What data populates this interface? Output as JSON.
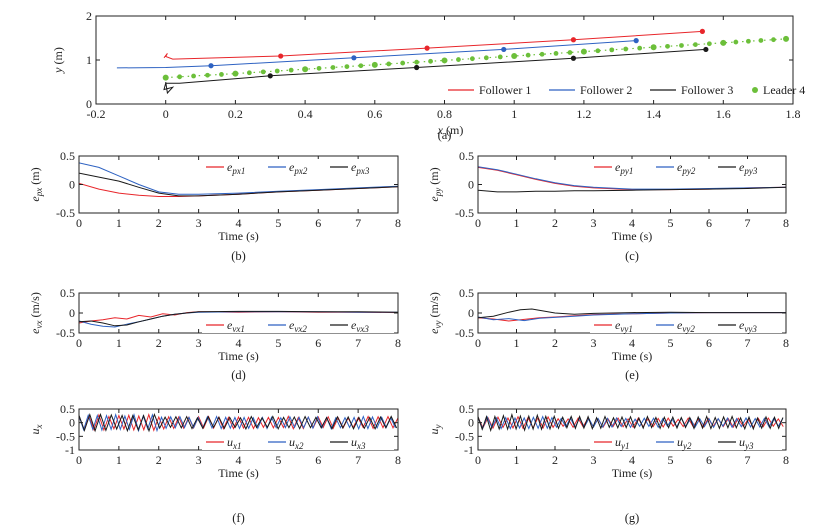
{
  "figure": {
    "subfigure_labels": [
      "(a)",
      "(b)",
      "(c)",
      "(d)",
      "(e)",
      "(f)",
      "(g)"
    ]
  },
  "colors": {
    "f1": "#e8262b",
    "f2": "#2e62c2",
    "f3": "#1a1a1a",
    "leader": "#6cbf3a"
  },
  "chart_data": [
    {
      "id": "a",
      "type": "line",
      "xlabel": "x (m)",
      "ylabel": "y (m)",
      "xlim": [
        -0.2,
        1.8
      ],
      "ylim": [
        0,
        2
      ],
      "xticks": [
        "-0.2",
        "0",
        "0.2",
        "0.4",
        "0.6",
        "0.8",
        "1",
        "1.2",
        "1.4",
        "1.6",
        "1.8"
      ],
      "yticks": [
        "0",
        "1",
        "2"
      ],
      "legend": "inside bottom-right, one row",
      "series": [
        {
          "name": "Follower 1",
          "color": "f1",
          "marker": "dot",
          "x": [
            -0.005,
            0.005,
            0,
            0.02,
            0.33,
            0.75,
            1.17,
            1.54
          ],
          "y": [
            1.05,
            1.15,
            1.08,
            1.02,
            1.09,
            1.27,
            1.46,
            1.65
          ]
        },
        {
          "name": "Follower 2",
          "color": "f2",
          "marker": "dot",
          "x": [
            -0.14,
            0.0,
            0.13,
            0.54,
            0.97,
            1.35
          ],
          "y": [
            0.82,
            0.83,
            0.87,
            1.05,
            1.24,
            1.44
          ]
        },
        {
          "name": "Follower 3",
          "color": "f3",
          "marker": "dot",
          "x": [
            0,
            0.005,
            0.02,
            -0.005,
            0,
            0.04,
            0.3,
            0.72,
            1.17,
            1.55
          ],
          "y": [
            0.5,
            0.25,
            0.38,
            0.33,
            0.47,
            0.47,
            0.64,
            0.83,
            1.04,
            1.24
          ]
        },
        {
          "name": "Leader 4",
          "color": "leader",
          "marker": "big-dot",
          "x": [
            0,
            0.2,
            0.4,
            0.6,
            0.8,
            1.0,
            1.2,
            1.4,
            1.6,
            1.78
          ],
          "y": [
            0.6,
            0.69,
            0.79,
            0.89,
            0.99,
            1.09,
            1.19,
            1.29,
            1.39,
            1.48
          ]
        }
      ]
    },
    {
      "id": "b",
      "type": "line",
      "xlabel": "Time (s)",
      "ylabel": "e_px (m)",
      "xlim": [
        0,
        8
      ],
      "ylim": [
        -0.5,
        0.5
      ],
      "xticks": [
        "0",
        "1",
        "2",
        "3",
        "4",
        "5",
        "6",
        "7",
        "8"
      ],
      "yticks": [
        "-0.5",
        "0",
        "0.5"
      ],
      "legend": "top-right",
      "series": [
        {
          "name": "e_px1",
          "color": "f1",
          "x": [
            0,
            0.5,
            1,
            1.5,
            2,
            2.5,
            3,
            4,
            5,
            6,
            7,
            8
          ],
          "y": [
            0.02,
            -0.08,
            -0.15,
            -0.19,
            -0.21,
            -0.21,
            -0.2,
            -0.17,
            -0.13,
            -0.1,
            -0.07,
            -0.04
          ]
        },
        {
          "name": "e_px2",
          "color": "f2",
          "x": [
            0,
            0.5,
            1,
            1.5,
            2,
            2.5,
            3,
            4,
            5,
            6,
            7,
            8
          ],
          "y": [
            0.38,
            0.3,
            0.15,
            0.0,
            -0.13,
            -0.17,
            -0.17,
            -0.15,
            -0.12,
            -0.09,
            -0.06,
            -0.03
          ]
        },
        {
          "name": "e_px3",
          "color": "f3",
          "x": [
            0,
            0.5,
            1,
            1.5,
            2,
            2.5,
            3,
            4,
            5,
            6,
            7,
            8
          ],
          "y": [
            0.2,
            0.13,
            0.06,
            -0.05,
            -0.15,
            -0.2,
            -0.2,
            -0.17,
            -0.13,
            -0.1,
            -0.07,
            -0.04
          ]
        }
      ]
    },
    {
      "id": "c",
      "type": "line",
      "xlabel": "Time (s)",
      "ylabel": "e_py (m)",
      "xlim": [
        0,
        8
      ],
      "ylim": [
        -0.5,
        0.5
      ],
      "xticks": [
        "0",
        "1",
        "2",
        "3",
        "4",
        "5",
        "6",
        "7",
        "8"
      ],
      "yticks": [
        "-0.5",
        "0",
        "0.5"
      ],
      "legend": "top-right",
      "series": [
        {
          "name": "e_py1",
          "color": "f1",
          "x": [
            0,
            0.5,
            1,
            1.5,
            2,
            2.5,
            3,
            4,
            5,
            6,
            7,
            8
          ],
          "y": [
            0.3,
            0.25,
            0.17,
            0.09,
            0.02,
            -0.03,
            -0.06,
            -0.09,
            -0.09,
            -0.08,
            -0.06,
            -0.05
          ]
        },
        {
          "name": "e_py2",
          "color": "f2",
          "x": [
            0,
            0.5,
            1,
            1.5,
            2,
            2.5,
            3,
            4,
            5,
            6,
            7,
            8
          ],
          "y": [
            0.31,
            0.26,
            0.18,
            0.1,
            0.03,
            -0.02,
            -0.05,
            -0.08,
            -0.08,
            -0.07,
            -0.06,
            -0.05
          ]
        },
        {
          "name": "e_py3",
          "color": "f3",
          "x": [
            0,
            0.5,
            1,
            1.5,
            2,
            2.5,
            3,
            4,
            5,
            6,
            7,
            8
          ],
          "y": [
            -0.1,
            -0.13,
            -0.13,
            -0.12,
            -0.12,
            -0.11,
            -0.11,
            -0.1,
            -0.09,
            -0.08,
            -0.07,
            -0.05
          ]
        }
      ]
    },
    {
      "id": "d",
      "type": "line",
      "xlabel": "Time (s)",
      "ylabel": "e_vx (m/s)",
      "xlim": [
        0,
        8
      ],
      "ylim": [
        -0.5,
        0.5
      ],
      "xticks": [
        "0",
        "1",
        "2",
        "3",
        "4",
        "5",
        "6",
        "7",
        "8"
      ],
      "yticks": [
        "-0.5",
        "0",
        "0.5"
      ],
      "legend": "bottom-right",
      "series": [
        {
          "name": "e_vx1",
          "color": "f1",
          "x": [
            0,
            0.3,
            0.6,
            0.9,
            1.2,
            1.5,
            1.8,
            2.1,
            2.4,
            2.7,
            3,
            4,
            5,
            6,
            7,
            8
          ],
          "y": [
            -0.25,
            -0.2,
            -0.17,
            -0.12,
            -0.15,
            -0.06,
            -0.1,
            -0.02,
            -0.05,
            0.01,
            0.03,
            0.02,
            0.03,
            0.02,
            0.02,
            0.01
          ]
        },
        {
          "name": "e_vx2",
          "color": "f2",
          "x": [
            0,
            0.3,
            0.6,
            0.9,
            1.2,
            1.5,
            1.8,
            2.1,
            2.4,
            2.7,
            3,
            4,
            5,
            6,
            7,
            8
          ],
          "y": [
            -0.2,
            -0.28,
            -0.33,
            -0.35,
            -0.28,
            -0.22,
            -0.15,
            -0.08,
            -0.03,
            0.0,
            0.02,
            0.03,
            0.03,
            0.03,
            0.02,
            0.02
          ]
        },
        {
          "name": "e_vx3",
          "color": "f3",
          "x": [
            0,
            0.3,
            0.6,
            0.9,
            1.2,
            1.5,
            1.8,
            2.1,
            2.4,
            2.7,
            3,
            4,
            5,
            6,
            7,
            8
          ],
          "y": [
            -0.22,
            -0.2,
            -0.25,
            -0.32,
            -0.3,
            -0.22,
            -0.15,
            -0.08,
            -0.03,
            0.0,
            0.03,
            0.04,
            0.04,
            0.03,
            0.03,
            0.02
          ]
        }
      ]
    },
    {
      "id": "e",
      "type": "line",
      "xlabel": "Time (s)",
      "ylabel": "e_vy (m/s)",
      "xlim": [
        0,
        8
      ],
      "ylim": [
        -0.5,
        0.5
      ],
      "xticks": [
        "0",
        "1",
        "2",
        "3",
        "4",
        "5",
        "6",
        "7",
        "8"
      ],
      "yticks": [
        "-0.5",
        "0",
        "0.5"
      ],
      "legend": "bottom-right",
      "series": [
        {
          "name": "e_vy1",
          "color": "f1",
          "x": [
            0,
            0.4,
            0.8,
            1.2,
            1.6,
            2,
            2.5,
            3,
            4,
            5,
            6,
            7,
            8
          ],
          "y": [
            -0.12,
            -0.15,
            -0.2,
            -0.16,
            -0.12,
            -0.1,
            -0.07,
            -0.04,
            -0.02,
            0.0,
            0.01,
            0.01,
            0.01
          ]
        },
        {
          "name": "e_vy2",
          "color": "f2",
          "x": [
            0,
            0.4,
            0.8,
            1.2,
            1.6,
            2,
            2.5,
            3,
            4,
            5,
            6,
            7,
            8
          ],
          "y": [
            -0.1,
            -0.17,
            -0.14,
            -0.19,
            -0.13,
            -0.11,
            -0.08,
            -0.05,
            -0.02,
            0.0,
            0.01,
            0.01,
            0.01
          ]
        },
        {
          "name": "e_vy3",
          "color": "f3",
          "x": [
            0,
            0.4,
            0.8,
            1.1,
            1.4,
            1.7,
            2,
            2.5,
            3,
            4,
            5,
            6,
            7,
            8
          ],
          "y": [
            -0.12,
            -0.08,
            0.02,
            0.08,
            0.1,
            0.05,
            0.0,
            -0.03,
            -0.01,
            0.01,
            0.02,
            0.01,
            0.01,
            0.01
          ]
        }
      ]
    },
    {
      "id": "f",
      "type": "line",
      "xlabel": "Time (s)",
      "ylabel": "u_x",
      "xlim": [
        0,
        8
      ],
      "ylim": [
        -1,
        0.5
      ],
      "xticks": [
        "0",
        "1",
        "2",
        "3",
        "4",
        "5",
        "6",
        "7",
        "8"
      ],
      "yticks": [
        "-1",
        "-0.5",
        "0",
        "0.5"
      ],
      "legend": "bottom-right",
      "series": [
        {
          "name": "u_x1",
          "color": "f1",
          "oscillation": {
            "start": 0,
            "period": 0.25,
            "amplitude": 0.2
          }
        },
        {
          "name": "u_x2",
          "color": "f2",
          "oscillation": {
            "start": 0,
            "period": 0.23,
            "amplitude": 0.2
          }
        },
        {
          "name": "u_x3",
          "color": "f3",
          "oscillation": {
            "start": 0,
            "period": 0.27,
            "amplitude": 0.2
          }
        }
      ]
    },
    {
      "id": "g",
      "type": "line",
      "xlabel": "Time (s)",
      "ylabel": "u_y",
      "xlim": [
        0,
        8
      ],
      "ylim": [
        -1,
        0.5
      ],
      "xticks": [
        "0",
        "1",
        "2",
        "3",
        "4",
        "5",
        "6",
        "7",
        "8"
      ],
      "yticks": [
        "-1",
        "-0.5",
        "0",
        "0.5"
      ],
      "legend": "bottom-right",
      "series": [
        {
          "name": "u_y1",
          "color": "f1",
          "oscillation": {
            "start": 0,
            "period": 0.26,
            "amplitude": 0.15
          }
        },
        {
          "name": "u_y2",
          "color": "f2",
          "oscillation": {
            "start": 0,
            "period": 0.24,
            "amplitude": 0.15
          }
        },
        {
          "name": "u_y3",
          "color": "f3",
          "oscillation": {
            "start": 0,
            "period": 0.22,
            "amplitude": 0.2
          }
        }
      ]
    }
  ]
}
